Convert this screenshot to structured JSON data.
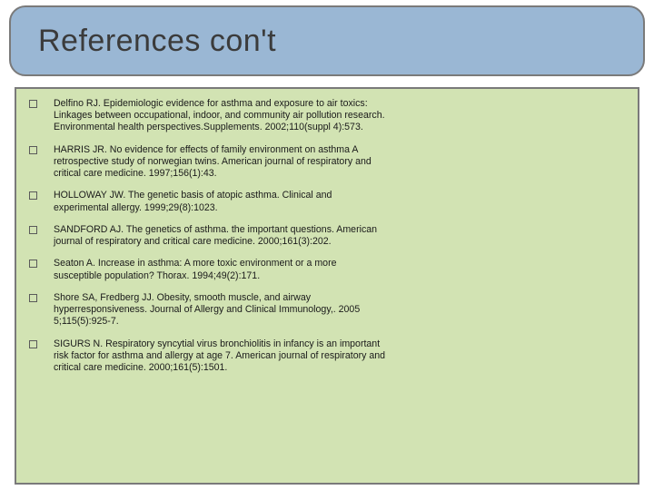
{
  "title": "References con't",
  "title_band": {
    "background_color": "#9ab7d4",
    "border_color": "#7a7a7a",
    "border_radius": 18,
    "title_color": "#3b3b3b",
    "title_fontsize": 34
  },
  "content_panel": {
    "background_color": "#d2e3b3",
    "border_color": "#7a7a7a",
    "text_color": "#1a1a1a",
    "item_fontsize": 10.6,
    "bullet_border_color": "#5a5a5a"
  },
  "references": [
    "Delfino RJ. Epidemiologic evidence for asthma and exposure to air toxics: Linkages between occupational, indoor, and community air pollution research. Environmental health perspectives.Supplements. 2002;110(suppl 4):573.",
    " HARRIS JR. No evidence for effects of family environment on asthma A retrospective study of norwegian twins. American journal of respiratory and critical care medicine. 1997;156(1):43.",
    " HOLLOWAY JW. The genetic basis of atopic asthma. Clinical and experimental allergy. 1999;29(8):1023.",
    " SANDFORD AJ. The genetics of asthma. the important questions. American journal of respiratory and critical care medicine. 2000;161(3):202.",
    " Seaton A. Increase in asthma: A more toxic environment or a more susceptible population? Thorax. 1994;49(2):171.",
    " Shore SA, Fredberg JJ. Obesity, smooth muscle, and airway hyperresponsiveness. Journal of Allergy and Clinical Immunology,. 2005 5;115(5):925-7.",
    " SIGURS N. Respiratory syncytial virus bronchiolitis in infancy is an important risk factor for asthma and allergy at age 7. American journal of respiratory and critical care medicine. 2000;161(5):1501."
  ]
}
